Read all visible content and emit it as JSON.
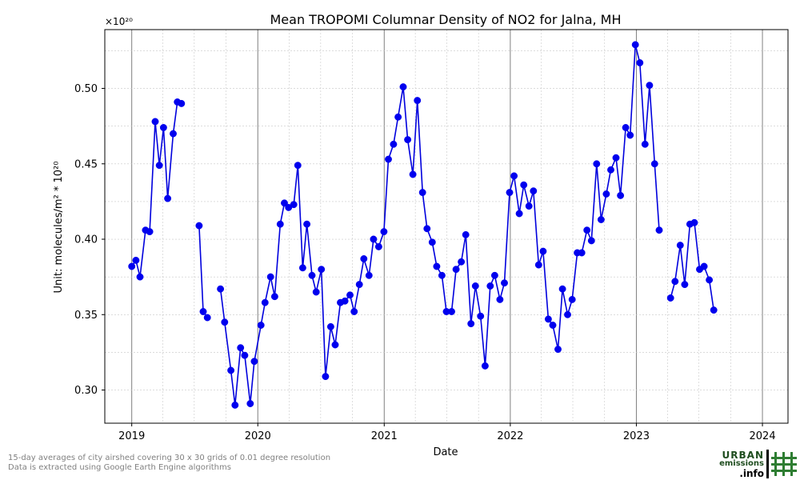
{
  "footnotes": {
    "line1": "15-day averages of city airshed covering 30 x 30 grids of 0.01 degree resolution",
    "line2": "Data is extracted using Google Earth Engine algorithms"
  },
  "logo": {
    "line1": "URBAN",
    "line2": "emissions",
    "line3": ".info"
  },
  "chart_data": {
    "type": "line",
    "title": "Mean TROPOMI Columnar Density of NO2 for Jalna, MH",
    "xlabel": "Date",
    "ylabel": "Unit: molecules/m² * 10²⁰",
    "offset_label": "×10²⁰",
    "x_ticks": [
      "2019",
      "2020",
      "2021",
      "2022",
      "2023",
      "2024"
    ],
    "y_ticks": [
      "0.30",
      "0.35",
      "0.40",
      "0.45",
      "0.50"
    ],
    "y_tick_values": [
      0.3,
      0.35,
      0.4,
      0.45,
      0.5
    ],
    "xlim": [
      "2018-10-15",
      "2024-03-15"
    ],
    "ylim": [
      0.278,
      0.539
    ],
    "grid": true,
    "line_color": "#0000dd",
    "marker_color": "#0000ee",
    "series": [
      {
        "segments": [
          [
            [
              "2019-01-01",
              0.382
            ],
            [
              "2019-01-13",
              0.386
            ],
            [
              "2019-01-25",
              0.375
            ],
            [
              "2019-02-10",
              0.406
            ],
            [
              "2019-02-22",
              0.405
            ],
            [
              "2019-03-10",
              0.478
            ],
            [
              "2019-03-22",
              0.449
            ],
            [
              "2019-04-03",
              0.474
            ],
            [
              "2019-04-15",
              0.427
            ],
            [
              "2019-05-01",
              0.47
            ],
            [
              "2019-05-13",
              0.491
            ],
            [
              "2019-05-25",
              0.49
            ]
          ],
          [
            [
              "2019-07-15",
              0.409
            ],
            [
              "2019-07-27",
              0.352
            ],
            [
              "2019-08-08",
              0.348
            ]
          ],
          [
            [
              "2019-09-15",
              0.367
            ],
            [
              "2019-09-27",
              0.345
            ],
            [
              "2019-10-15",
              0.313
            ],
            [
              "2019-10-27",
              0.29
            ],
            [
              "2019-11-12",
              0.328
            ],
            [
              "2019-11-24",
              0.323
            ],
            [
              "2019-12-10",
              0.291
            ],
            [
              "2019-12-22",
              0.319
            ],
            [
              "2020-01-10",
              0.343
            ],
            [
              "2020-01-22",
              0.358
            ],
            [
              "2020-02-07",
              0.375
            ],
            [
              "2020-02-19",
              0.362
            ],
            [
              "2020-03-06",
              0.41
            ],
            [
              "2020-03-18",
              0.424
            ],
            [
              "2020-03-30",
              0.421
            ],
            [
              "2020-04-14",
              0.423
            ],
            [
              "2020-04-26",
              0.449
            ],
            [
              "2020-05-10",
              0.381
            ],
            [
              "2020-05-22",
              0.41
            ],
            [
              "2020-06-06",
              0.376
            ],
            [
              "2020-06-18",
              0.365
            ],
            [
              "2020-07-03",
              0.38
            ],
            [
              "2020-07-15",
              0.309
            ],
            [
              "2020-07-30",
              0.342
            ],
            [
              "2020-08-12",
              0.33
            ],
            [
              "2020-08-27",
              0.358
            ],
            [
              "2020-09-09",
              0.359
            ],
            [
              "2020-09-24",
              0.363
            ],
            [
              "2020-10-06",
              0.352
            ],
            [
              "2020-10-21",
              0.37
            ],
            [
              "2020-11-03",
              0.387
            ],
            [
              "2020-11-18",
              0.376
            ],
            [
              "2020-12-01",
              0.4
            ],
            [
              "2020-12-16",
              0.395
            ],
            [
              "2020-12-31",
              0.405
            ],
            [
              "2021-01-13",
              0.453
            ],
            [
              "2021-01-28",
              0.463
            ],
            [
              "2021-02-10",
              0.481
            ],
            [
              "2021-02-25",
              0.501
            ],
            [
              "2021-03-10",
              0.466
            ],
            [
              "2021-03-25",
              0.443
            ],
            [
              "2021-04-07",
              0.492
            ],
            [
              "2021-04-22",
              0.431
            ],
            [
              "2021-05-05",
              0.407
            ],
            [
              "2021-05-20",
              0.398
            ],
            [
              "2021-06-02",
              0.382
            ],
            [
              "2021-06-17",
              0.376
            ],
            [
              "2021-06-30",
              0.352
            ],
            [
              "2021-07-15",
              0.352
            ],
            [
              "2021-07-28",
              0.38
            ],
            [
              "2021-08-12",
              0.385
            ],
            [
              "2021-08-25",
              0.403
            ],
            [
              "2021-09-09",
              0.344
            ],
            [
              "2021-09-22",
              0.369
            ],
            [
              "2021-10-07",
              0.349
            ],
            [
              "2021-10-20",
              0.316
            ],
            [
              "2021-11-04",
              0.369
            ],
            [
              "2021-11-17",
              0.376
            ],
            [
              "2021-12-02",
              0.36
            ],
            [
              "2021-12-15",
              0.371
            ],
            [
              "2021-12-30",
              0.431
            ],
            [
              "2022-01-12",
              0.442
            ],
            [
              "2022-01-27",
              0.417
            ],
            [
              "2022-02-09",
              0.436
            ],
            [
              "2022-02-24",
              0.422
            ],
            [
              "2022-03-09",
              0.432
            ],
            [
              "2022-03-24",
              0.383
            ],
            [
              "2022-04-06",
              0.392
            ],
            [
              "2022-04-21",
              0.347
            ],
            [
              "2022-05-04",
              0.343
            ],
            [
              "2022-05-19",
              0.327
            ],
            [
              "2022-06-01",
              0.367
            ],
            [
              "2022-06-16",
              0.35
            ],
            [
              "2022-06-29",
              0.36
            ],
            [
              "2022-07-14",
              0.391
            ],
            [
              "2022-07-27",
              0.391
            ],
            [
              "2022-08-11",
              0.406
            ],
            [
              "2022-08-24",
              0.399
            ],
            [
              "2022-09-08",
              0.45
            ],
            [
              "2022-09-21",
              0.413
            ],
            [
              "2022-10-06",
              0.43
            ],
            [
              "2022-10-19",
              0.446
            ],
            [
              "2022-11-03",
              0.454
            ],
            [
              "2022-11-16",
              0.429
            ],
            [
              "2022-12-01",
              0.474
            ],
            [
              "2022-12-14",
              0.469
            ],
            [
              "2022-12-29",
              0.529
            ],
            [
              "2023-01-11",
              0.517
            ],
            [
              "2023-01-26",
              0.463
            ],
            [
              "2023-02-08",
              0.502
            ],
            [
              "2023-02-23",
              0.45
            ],
            [
              "2023-03-08",
              0.406
            ]
          ],
          [
            [
              "2023-04-10",
              0.361
            ],
            [
              "2023-04-23",
              0.372
            ],
            [
              "2023-05-08",
              0.396
            ],
            [
              "2023-05-21",
              0.37
            ],
            [
              "2023-06-05",
              0.41
            ],
            [
              "2023-06-18",
              0.411
            ],
            [
              "2023-07-03",
              0.38
            ],
            [
              "2023-07-16",
              0.382
            ],
            [
              "2023-07-31",
              0.373
            ],
            [
              "2023-08-13",
              0.353
            ]
          ]
        ]
      }
    ]
  }
}
